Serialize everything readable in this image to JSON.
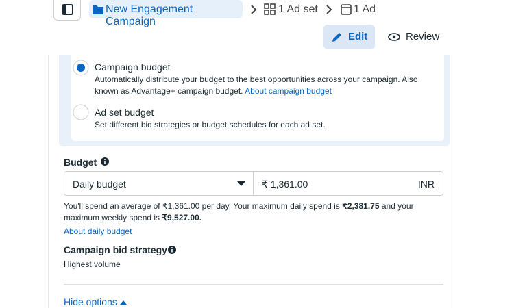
{
  "breadcrumb": {
    "campaign": "New Engagement Campaign",
    "ad_set": "1 Ad set",
    "ad": "1 Ad"
  },
  "actions": {
    "edit": "Edit",
    "review": "Review"
  },
  "budget_options": [
    {
      "label": "Campaign budget",
      "description": "Automatically distribute your budget to the best opportunities across your campaign. Also known as Advantage+ campaign budget.",
      "link": "About campaign budget",
      "selected": true
    },
    {
      "label": "Ad set budget",
      "description": "Set different bid strategies or budget schedules for each ad set.",
      "selected": false
    }
  ],
  "budget": {
    "label": "Budget",
    "type": "Daily budget",
    "amount": "₹ 1,361.00",
    "currency": "INR",
    "summary": [
      "You'll spend an average of ₹1,361.00 per day. Your maximum daily spend is ",
      "₹2,381.75",
      " and your maximum weekly spend is ",
      "₹9,527.00."
    ],
    "link": "About daily budget"
  },
  "bid_strategy": {
    "label": "Campaign bid strategy",
    "value": "Highest volume"
  },
  "hide_options": "Hide options"
}
